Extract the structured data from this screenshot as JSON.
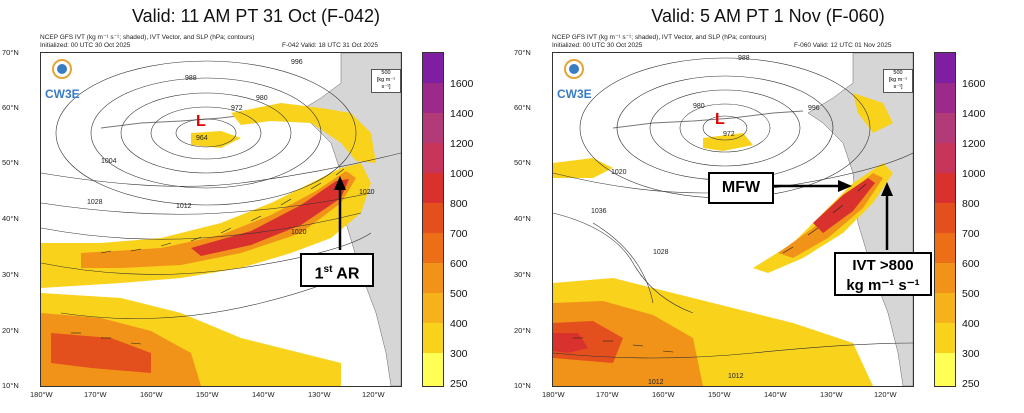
{
  "left": {
    "title": "Valid: 11 AM PT 31 Oct (F-042)",
    "header_line1": "NCEP GFS IVT (kg m⁻¹ s⁻¹; shaded), IVT Vector, and SLP (hPa; contours)",
    "header_line2": "Initialized: 00 UTC 30 Oct 2025",
    "header_right": "F-042  Valid: 18 UTC 31 Oct 2025",
    "callout_main": "1",
    "callout_sup": "st",
    "callout_rest": " AR",
    "low_label": "L",
    "low_value": "964",
    "contour_labels": [
      "988",
      "996",
      "980",
      "972",
      "1004",
      "1012",
      "1020",
      "1020",
      "1028"
    ]
  },
  "right": {
    "title": "Valid: 5 AM PT 1 Nov (F-060)",
    "header_line1": "NCEP GFS IVT (kg m⁻¹ s⁻¹; shaded), IVT Vector, and SLP (hPa; contours)",
    "header_line2": "Initialized: 00 UTC 30 Oct 2025",
    "header_right": "F-060  Valid: 12 UTC 01 Nov 2025",
    "callout_mfw": "MFW",
    "callout_ivt_line1": "IVT >800",
    "callout_ivt_line2": "kg m⁻¹ s⁻¹",
    "low_label": "L",
    "low_value": "972",
    "contour_labels": [
      "988",
      "980",
      "996",
      "1020",
      "1036",
      "1028",
      "1012",
      "1012"
    ]
  },
  "logo_text": "CW3E",
  "vector_legend": [
    "500",
    "[kg m⁻¹ s⁻¹]"
  ],
  "lat_labels": [
    "70°N",
    "60°N",
    "50°N",
    "40°N",
    "30°N",
    "20°N",
    "10°N"
  ],
  "lon_labels": [
    "180°W",
    "170°W",
    "160°W",
    "150°W",
    "140°W",
    "130°W",
    "120°W"
  ],
  "colorbar": {
    "ticks": [
      "1600",
      "1400",
      "1200",
      "1000",
      "800",
      "700",
      "600",
      "500",
      "400",
      "300",
      "250"
    ],
    "colors": [
      "#7d1fa0",
      "#9b2a8a",
      "#b23a77",
      "#c7355a",
      "#d9322e",
      "#e4501d",
      "#ec6f18",
      "#f19318",
      "#f6b21a",
      "#f9d21c",
      "#ffff55"
    ]
  }
}
